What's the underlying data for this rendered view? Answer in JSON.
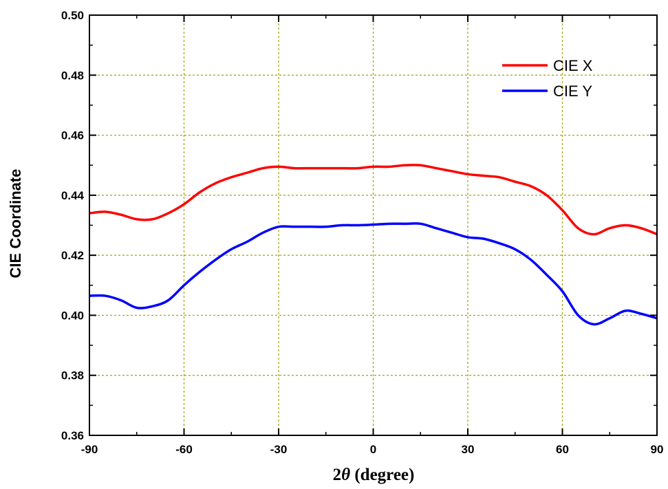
{
  "chart_data": {
    "type": "line",
    "xlabel_parts": {
      "prefix": "2",
      "symbol": "θ",
      "suffix": " (degree)"
    },
    "ylabel": "CIE Coordinate",
    "xlim": [
      -90,
      90
    ],
    "ylim": [
      0.36,
      0.5
    ],
    "x_ticks": [
      "-90",
      "-60",
      "-30",
      "0",
      "30",
      "60",
      "90"
    ],
    "y_ticks": [
      "0.36",
      "0.38",
      "0.40",
      "0.42",
      "0.44",
      "0.46",
      "0.48",
      "0.50"
    ],
    "grid": true,
    "legend_position": "top-right",
    "series": [
      {
        "name": "CIE X",
        "color": "#ff0000",
        "x": [
          -90,
          -85,
          -80,
          -75,
          -70,
          -65,
          -60,
          -55,
          -50,
          -45,
          -40,
          -35,
          -30,
          -25,
          -20,
          -15,
          -10,
          -5,
          0,
          5,
          10,
          15,
          20,
          25,
          30,
          35,
          40,
          45,
          50,
          55,
          60,
          65,
          70,
          75,
          80,
          85,
          90
        ],
        "values": [
          0.434,
          0.4345,
          0.4335,
          0.432,
          0.432,
          0.434,
          0.437,
          0.441,
          0.444,
          0.446,
          0.4475,
          0.449,
          0.4495,
          0.449,
          0.449,
          0.449,
          0.449,
          0.449,
          0.4495,
          0.4495,
          0.45,
          0.45,
          0.449,
          0.448,
          0.447,
          0.4465,
          0.446,
          0.4445,
          0.443,
          0.44,
          0.435,
          0.429,
          0.427,
          0.429,
          0.43,
          0.429,
          0.427
        ]
      },
      {
        "name": "CIE Y",
        "color": "#0000ff",
        "x": [
          -90,
          -85,
          -80,
          -75,
          -70,
          -65,
          -60,
          -55,
          -50,
          -45,
          -40,
          -35,
          -30,
          -25,
          -20,
          -15,
          -10,
          -5,
          0,
          5,
          10,
          15,
          20,
          25,
          30,
          35,
          40,
          45,
          50,
          55,
          60,
          65,
          70,
          75,
          80,
          85,
          90
        ],
        "values": [
          0.4065,
          0.4065,
          0.405,
          0.4025,
          0.403,
          0.405,
          0.41,
          0.4145,
          0.4185,
          0.422,
          0.4245,
          0.4275,
          0.4295,
          0.4295,
          0.4295,
          0.4295,
          0.43,
          0.43,
          0.4302,
          0.4305,
          0.4305,
          0.4305,
          0.429,
          0.4275,
          0.426,
          0.4255,
          0.424,
          0.422,
          0.4185,
          0.4135,
          0.408,
          0.4,
          0.397,
          0.399,
          0.4015,
          0.4005,
          0.399
        ]
      }
    ]
  }
}
